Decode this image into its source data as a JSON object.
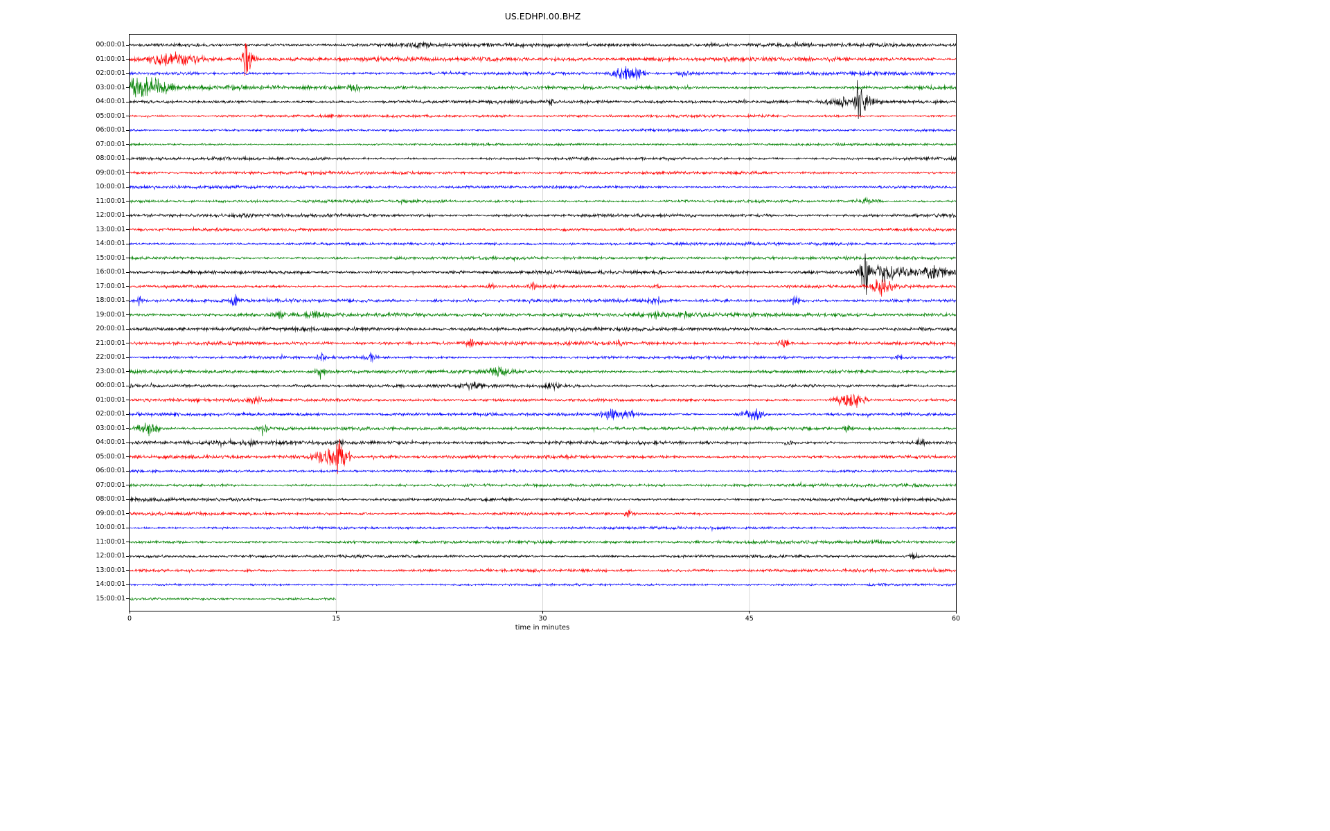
{
  "chart_data": {
    "type": "line",
    "subtype": "seismogram-helicorder",
    "title": "US.EDHPI.00.BHZ",
    "xlabel": "time in minutes",
    "ylabel": "",
    "xlim": [
      0,
      60
    ],
    "x_ticks": [
      0,
      15,
      30,
      45,
      60
    ],
    "gridlines_x": [
      15,
      30,
      45
    ],
    "grid": true,
    "legend": "none",
    "trace_colors_cycle": [
      "#000000",
      "#ff0000",
      "#0000ff",
      "#008000"
    ],
    "rows": [
      {
        "label": "00:00:01",
        "color": "#000000",
        "noise": 2.0,
        "events": [
          [
            21.0,
            2.0,
            0.6
          ]
        ]
      },
      {
        "label": "01:00:01",
        "color": "#ff0000",
        "noise": 2.2,
        "events": [
          [
            2.2,
            4.0,
            0.8
          ],
          [
            3.4,
            5.0,
            0.9
          ],
          [
            4.6,
            3.5,
            0.7
          ],
          [
            8.5,
            22.0,
            0.18
          ],
          [
            8.8,
            7.0,
            0.3
          ]
        ]
      },
      {
        "label": "02:00:01",
        "color": "#0000ff",
        "noise": 1.8,
        "events": [
          [
            35.8,
            6.0,
            0.5
          ],
          [
            36.7,
            5.0,
            0.6
          ],
          [
            40.3,
            3.0,
            0.3
          ]
        ]
      },
      {
        "label": "03:00:01",
        "color": "#008000",
        "noise": 2.2,
        "events": [
          [
            0.5,
            6.0,
            0.8
          ],
          [
            1.3,
            7.0,
            0.9
          ],
          [
            2.5,
            4.0,
            0.6
          ],
          [
            16.3,
            4.0,
            0.4
          ]
        ]
      },
      {
        "label": "04:00:01",
        "color": "#000000",
        "noise": 1.8,
        "events": [
          [
            30.5,
            3.5,
            0.2
          ],
          [
            51.8,
            5.0,
            0.6
          ],
          [
            52.9,
            18.0,
            0.22
          ],
          [
            53.4,
            7.0,
            0.5
          ]
        ]
      },
      {
        "label": "05:00:01",
        "color": "#ff0000",
        "noise": 1.4,
        "events": []
      },
      {
        "label": "06:00:01",
        "color": "#0000ff",
        "noise": 1.5,
        "events": []
      },
      {
        "label": "07:00:01",
        "color": "#008000",
        "noise": 1.3,
        "events": []
      },
      {
        "label": "08:00:01",
        "color": "#000000",
        "noise": 1.7,
        "events": []
      },
      {
        "label": "09:00:01",
        "color": "#ff0000",
        "noise": 1.6,
        "events": []
      },
      {
        "label": "10:00:01",
        "color": "#0000ff",
        "noise": 1.6,
        "events": []
      },
      {
        "label": "11:00:01",
        "color": "#008000",
        "noise": 1.6,
        "events": [
          [
            53.8,
            3.0,
            0.5
          ]
        ]
      },
      {
        "label": "12:00:01",
        "color": "#000000",
        "noise": 2.0,
        "events": []
      },
      {
        "label": "13:00:01",
        "color": "#ff0000",
        "noise": 1.6,
        "events": []
      },
      {
        "label": "14:00:01",
        "color": "#0000ff",
        "noise": 1.6,
        "events": []
      },
      {
        "label": "15:00:01",
        "color": "#008000",
        "noise": 1.6,
        "events": []
      },
      {
        "label": "16:00:01",
        "color": "#000000",
        "noise": 1.9,
        "events": [
          [
            53.5,
            20.0,
            0.28
          ],
          [
            54.3,
            9.0,
            0.7
          ],
          [
            55.8,
            4.0,
            1.2
          ],
          [
            58.3,
            6.0,
            0.5
          ],
          [
            59.3,
            5.0,
            0.4
          ]
        ]
      },
      {
        "label": "17:00:01",
        "color": "#ff0000",
        "noise": 1.7,
        "events": [
          [
            26.3,
            4.0,
            0.2
          ],
          [
            29.3,
            4.0,
            0.2
          ],
          [
            38.2,
            3.0,
            0.2
          ],
          [
            54.5,
            8.0,
            0.35
          ],
          [
            55.0,
            5.0,
            0.3
          ]
        ]
      },
      {
        "label": "18:00:01",
        "color": "#0000ff",
        "noise": 1.8,
        "events": [
          [
            0.7,
            5.0,
            0.2
          ],
          [
            7.7,
            6.0,
            0.25
          ],
          [
            38.2,
            4.0,
            0.3
          ],
          [
            48.2,
            4.0,
            0.3
          ]
        ]
      },
      {
        "label": "19:00:01",
        "color": "#008000",
        "noise": 2.2,
        "events": [
          [
            10.8,
            4.0,
            0.4
          ],
          [
            13.4,
            4.0,
            0.3
          ],
          [
            38.3,
            3.0,
            0.3
          ],
          [
            40.2,
            3.0,
            0.3
          ]
        ]
      },
      {
        "label": "20:00:01",
        "color": "#000000",
        "noise": 2.0,
        "events": []
      },
      {
        "label": "21:00:01",
        "color": "#ff0000",
        "noise": 1.8,
        "events": [
          [
            24.7,
            4.0,
            0.3
          ],
          [
            35.5,
            3.5,
            0.3
          ],
          [
            47.5,
            4.5,
            0.25
          ]
        ]
      },
      {
        "label": "22:00:01",
        "color": "#0000ff",
        "noise": 1.7,
        "events": [
          [
            13.9,
            4.0,
            0.25
          ],
          [
            17.5,
            4.0,
            0.3
          ],
          [
            55.8,
            3.0,
            0.3
          ]
        ]
      },
      {
        "label": "23:00:01",
        "color": "#008000",
        "noise": 2.0,
        "events": [
          [
            13.9,
            3.5,
            0.3
          ],
          [
            26.8,
            6.0,
            0.5
          ]
        ]
      },
      {
        "label": "00:00:01",
        "color": "#000000",
        "noise": 1.7,
        "events": [
          [
            24.8,
            4.0,
            0.4
          ],
          [
            30.8,
            3.0,
            0.4
          ]
        ]
      },
      {
        "label": "01:00:01",
        "color": "#ff0000",
        "noise": 1.7,
        "events": [
          [
            9.3,
            3.5,
            0.3
          ],
          [
            51.8,
            6.0,
            0.5
          ],
          [
            52.9,
            7.0,
            0.4
          ]
        ]
      },
      {
        "label": "02:00:01",
        "color": "#0000ff",
        "noise": 1.7,
        "events": [
          [
            34.8,
            6.0,
            0.4
          ],
          [
            36.0,
            5.0,
            0.5
          ],
          [
            45.0,
            5.0,
            0.4
          ],
          [
            45.7,
            6.0,
            0.3
          ]
        ]
      },
      {
        "label": "03:00:01",
        "color": "#008000",
        "noise": 1.8,
        "events": [
          [
            1.0,
            7.0,
            0.5
          ],
          [
            1.8,
            4.0,
            0.4
          ],
          [
            9.7,
            3.0,
            0.3
          ],
          [
            52.0,
            3.0,
            0.3
          ]
        ]
      },
      {
        "label": "04:00:01",
        "color": "#000000",
        "noise": 2.0,
        "events": [
          [
            8.8,
            3.0,
            0.2
          ],
          [
            15.3,
            4.0,
            0.2
          ],
          [
            47.8,
            4.0,
            0.2
          ],
          [
            57.5,
            3.5,
            0.3
          ]
        ]
      },
      {
        "label": "05:00:01",
        "color": "#ff0000",
        "noise": 1.8,
        "events": [
          [
            13.9,
            8.0,
            0.4
          ],
          [
            14.6,
            10.0,
            0.3
          ],
          [
            15.2,
            24.0,
            0.22
          ],
          [
            15.6,
            9.0,
            0.3
          ]
        ]
      },
      {
        "label": "06:00:01",
        "color": "#0000ff",
        "noise": 1.4,
        "events": []
      },
      {
        "label": "07:00:01",
        "color": "#008000",
        "noise": 1.6,
        "events": []
      },
      {
        "label": "08:00:01",
        "color": "#000000",
        "noise": 1.9,
        "events": []
      },
      {
        "label": "09:00:01",
        "color": "#ff0000",
        "noise": 1.6,
        "events": [
          [
            36.2,
            3.0,
            0.3
          ]
        ]
      },
      {
        "label": "10:00:01",
        "color": "#0000ff",
        "noise": 1.4,
        "events": []
      },
      {
        "label": "11:00:01",
        "color": "#008000",
        "noise": 1.7,
        "events": []
      },
      {
        "label": "12:00:01",
        "color": "#000000",
        "noise": 1.7,
        "events": [
          [
            57.0,
            3.0,
            0.4
          ]
        ]
      },
      {
        "label": "13:00:01",
        "color": "#ff0000",
        "noise": 1.6,
        "events": []
      },
      {
        "label": "14:00:01",
        "color": "#0000ff",
        "noise": 1.2,
        "events": []
      },
      {
        "label": "15:00:01",
        "color": "#008000",
        "noise": 1.7,
        "events": [],
        "end_minute": 15
      }
    ]
  }
}
